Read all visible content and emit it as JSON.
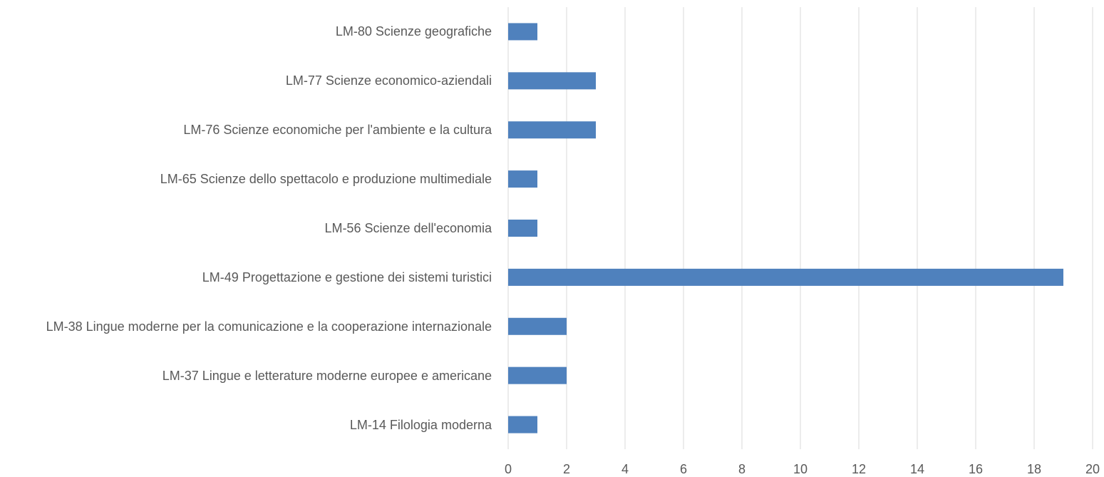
{
  "chart_data": {
    "type": "bar",
    "orientation": "horizontal",
    "categories": [
      "LM-80 Scienze geografiche",
      "LM-77 Scienze economico-aziendali",
      "LM-76 Scienze economiche per l'ambiente e la cultura",
      "LM-65 Scienze dello spettacolo e produzione multimediale",
      "LM-56 Scienze dell'economia",
      "LM-49 Progettazione e gestione dei sistemi turistici",
      "LM-38 Lingue moderne per la comunicazione e la cooperazione internazionale",
      "LM-37 Lingue e letterature moderne europee e americane",
      "LM-14 Filologia moderna"
    ],
    "values": [
      1,
      3,
      3,
      1,
      1,
      19,
      2,
      2,
      1
    ],
    "color": "#4f81bd",
    "xlim": [
      0,
      20
    ],
    "xticks": [
      0,
      2,
      4,
      6,
      8,
      10,
      12,
      14,
      16,
      18,
      20
    ],
    "grid": true
  }
}
